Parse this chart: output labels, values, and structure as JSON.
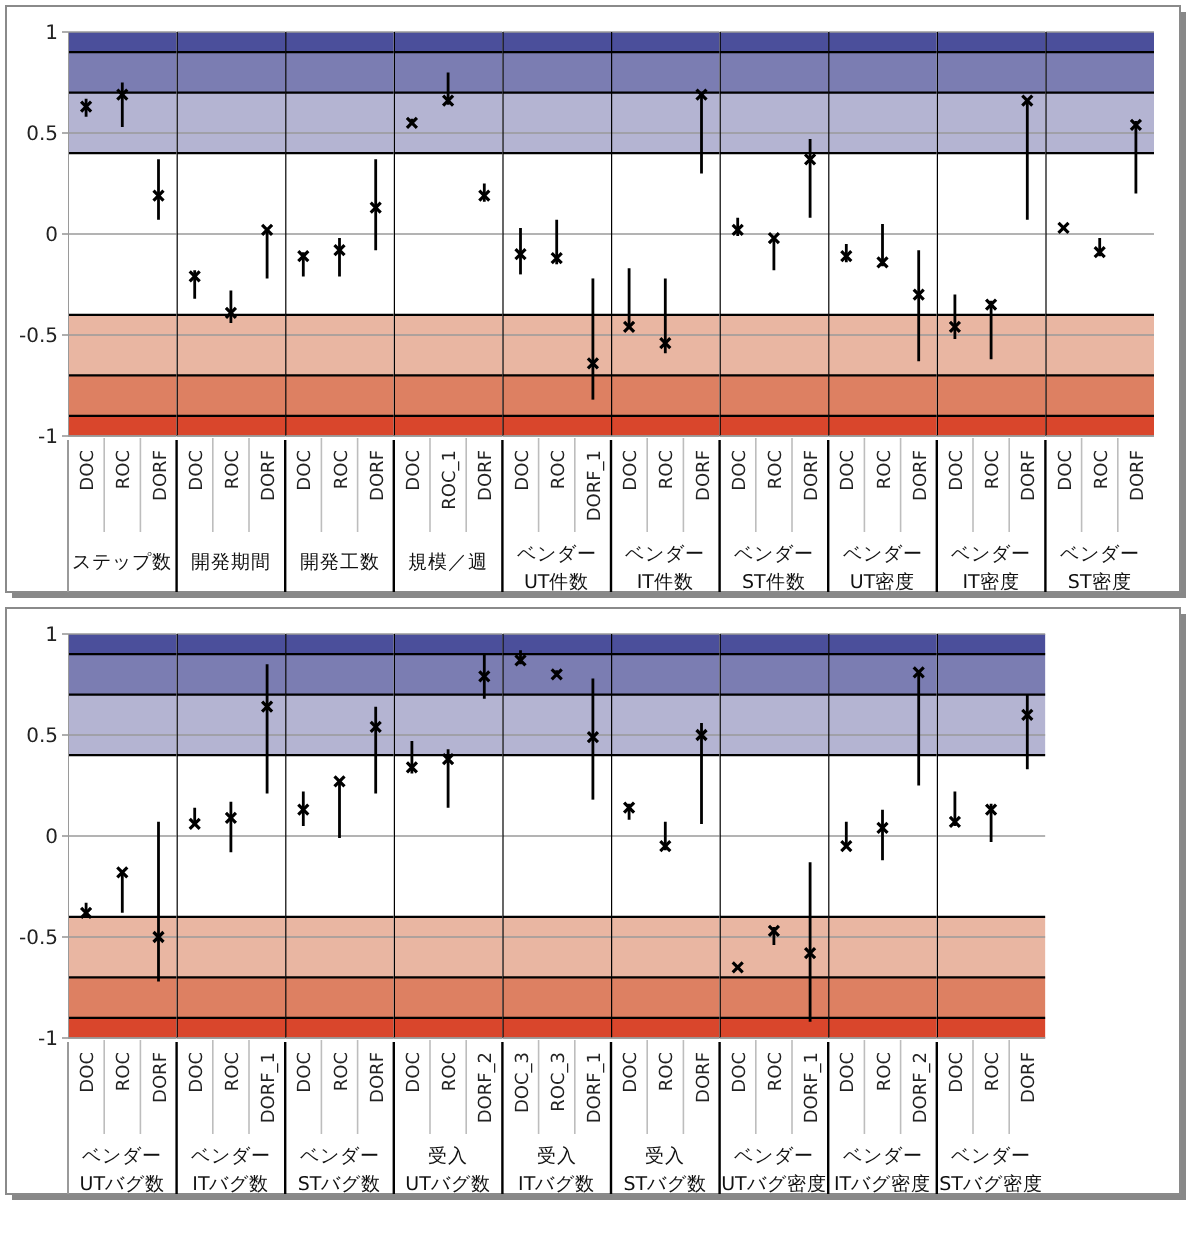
{
  "chart_data": [
    {
      "type": "scatter",
      "xlabel": "ステップ数",
      "categories": [
        "DOC",
        "ROC",
        "DORF"
      ],
      "values": [
        0.63,
        0.69,
        0.19
      ],
      "errors": [
        [
          0.58,
          0.67
        ],
        [
          0.53,
          0.75
        ],
        [
          0.07,
          0.37
        ]
      ],
      "ylim": [
        -1,
        1
      ],
      "yticks": [
        -1,
        -0.5,
        0,
        0.5,
        1
      ],
      "grid": "y",
      "marker": "cross",
      "bands": [
        {
          "axis": "y",
          "from": 0.9,
          "to": 1,
          "color": "#4b4f9b"
        },
        {
          "axis": "y",
          "from": 0.7,
          "to": 0.9,
          "color": "#7b7db2"
        },
        {
          "axis": "y",
          "from": 0.4,
          "to": 0.7,
          "color": "#b4b4d2"
        },
        {
          "axis": "y",
          "from": -0.7,
          "to": -0.4,
          "color": "#e9b6a2"
        },
        {
          "axis": "y",
          "from": -0.9,
          "to": -0.7,
          "color": "#dd8062"
        },
        {
          "axis": "y",
          "from": -1,
          "to": -0.9,
          "color": "#d9462c"
        }
      ],
      "ref_lines": [
        {
          "axis": "y",
          "value": 0.9,
          "color": "#000000"
        },
        {
          "axis": "y",
          "value": 0.7,
          "color": "#000000"
        },
        {
          "axis": "y",
          "value": 0.4,
          "color": "#000000"
        },
        {
          "axis": "y",
          "value": -0.4,
          "color": "#000000"
        },
        {
          "axis": "y",
          "value": -0.7,
          "color": "#000000"
        },
        {
          "axis": "y",
          "value": -0.9,
          "color": "#000000"
        }
      ]
    },
    {
      "type": "scatter",
      "xlabel": "開発期間",
      "categories": [
        "DOC",
        "ROC",
        "DORF"
      ],
      "values": [
        -0.21,
        -0.39,
        0.02
      ],
      "errors": [
        [
          -0.32,
          -0.18
        ],
        [
          -0.44,
          -0.28
        ],
        [
          -0.22,
          0.03
        ]
      ],
      "ylim": [
        -1,
        1
      ],
      "yticks": [
        -1,
        -0.5,
        0,
        0.5,
        1
      ],
      "tick_labels": "x",
      "grid": "y",
      "marker": "cross",
      "bands": [
        {
          "axis": "y",
          "from": 0.9,
          "to": 1,
          "color": "#4b4f9b"
        },
        {
          "axis": "y",
          "from": 0.7,
          "to": 0.9,
          "color": "#7b7db2"
        },
        {
          "axis": "y",
          "from": 0.4,
          "to": 0.7,
          "color": "#b4b4d2"
        },
        {
          "axis": "y",
          "from": -0.7,
          "to": -0.4,
          "color": "#e9b6a2"
        },
        {
          "axis": "y",
          "from": -0.9,
          "to": -0.7,
          "color": "#dd8062"
        },
        {
          "axis": "y",
          "from": -1,
          "to": -0.9,
          "color": "#d9462c"
        }
      ],
      "ref_lines": [
        {
          "axis": "y",
          "value": 0.9,
          "color": "#000000"
        },
        {
          "axis": "y",
          "value": 0.7,
          "color": "#000000"
        },
        {
          "axis": "y",
          "value": 0.4,
          "color": "#000000"
        },
        {
          "axis": "y",
          "value": -0.4,
          "color": "#000000"
        },
        {
          "axis": "y",
          "value": -0.7,
          "color": "#000000"
        },
        {
          "axis": "y",
          "value": -0.9,
          "color": "#000000"
        }
      ]
    },
    {
      "type": "scatter",
      "xlabel": "開発工数",
      "categories": [
        "DOC",
        "ROC",
        "DORF"
      ],
      "values": [
        -0.11,
        -0.08,
        0.13
      ],
      "errors": [
        [
          -0.21,
          -0.09
        ],
        [
          -0.21,
          -0.02
        ],
        [
          -0.08,
          0.37
        ]
      ],
      "ylim": [
        -1,
        1
      ],
      "yticks": [
        -1,
        -0.5,
        0,
        0.5,
        1
      ],
      "tick_labels": "x",
      "grid": "y",
      "marker": "cross",
      "bands": [
        {
          "axis": "y",
          "from": 0.9,
          "to": 1,
          "color": "#4b4f9b"
        },
        {
          "axis": "y",
          "from": 0.7,
          "to": 0.9,
          "color": "#7b7db2"
        },
        {
          "axis": "y",
          "from": 0.4,
          "to": 0.7,
          "color": "#b4b4d2"
        },
        {
          "axis": "y",
          "from": -0.7,
          "to": -0.4,
          "color": "#e9b6a2"
        },
        {
          "axis": "y",
          "from": -0.9,
          "to": -0.7,
          "color": "#dd8062"
        },
        {
          "axis": "y",
          "from": -1,
          "to": -0.9,
          "color": "#d9462c"
        }
      ],
      "ref_lines": [
        {
          "axis": "y",
          "value": 0.9,
          "color": "#000000"
        },
        {
          "axis": "y",
          "value": 0.7,
          "color": "#000000"
        },
        {
          "axis": "y",
          "value": 0.4,
          "color": "#000000"
        },
        {
          "axis": "y",
          "value": -0.4,
          "color": "#000000"
        },
        {
          "axis": "y",
          "value": -0.7,
          "color": "#000000"
        },
        {
          "axis": "y",
          "value": -0.9,
          "color": "#000000"
        }
      ]
    },
    {
      "type": "scatter",
      "xlabel": "規模／週",
      "categories": [
        "DOC",
        "ROC_1",
        "DORF"
      ],
      "values": [
        0.55,
        0.66,
        0.19
      ],
      "errors": [
        [
          0.54,
          0.57
        ],
        [
          0.64,
          0.8
        ],
        [
          0.16,
          0.25
        ]
      ],
      "ylim": [
        -1,
        1
      ],
      "yticks": [
        -1,
        -0.5,
        0,
        0.5,
        1
      ],
      "tick_labels": "x",
      "grid": "y",
      "marker": "cross",
      "bands": [
        {
          "axis": "y",
          "from": 0.9,
          "to": 1,
          "color": "#4b4f9b"
        },
        {
          "axis": "y",
          "from": 0.7,
          "to": 0.9,
          "color": "#7b7db2"
        },
        {
          "axis": "y",
          "from": 0.4,
          "to": 0.7,
          "color": "#b4b4d2"
        },
        {
          "axis": "y",
          "from": -0.7,
          "to": -0.4,
          "color": "#e9b6a2"
        },
        {
          "axis": "y",
          "from": -0.9,
          "to": -0.7,
          "color": "#dd8062"
        },
        {
          "axis": "y",
          "from": -1,
          "to": -0.9,
          "color": "#d9462c"
        }
      ],
      "ref_lines": [
        {
          "axis": "y",
          "value": 0.9,
          "color": "#000000"
        },
        {
          "axis": "y",
          "value": 0.7,
          "color": "#000000"
        },
        {
          "axis": "y",
          "value": 0.4,
          "color": "#000000"
        },
        {
          "axis": "y",
          "value": -0.4,
          "color": "#000000"
        },
        {
          "axis": "y",
          "value": -0.7,
          "color": "#000000"
        },
        {
          "axis": "y",
          "value": -0.9,
          "color": "#000000"
        }
      ]
    },
    {
      "type": "scatter",
      "xlabel": "ベンダー UT件数",
      "categories": [
        "DOC",
        "ROC",
        "DORF_1"
      ],
      "values": [
        -0.1,
        -0.12,
        -0.64
      ],
      "errors": [
        [
          -0.2,
          0.03
        ],
        [
          -0.15,
          0.07
        ],
        [
          -0.82,
          -0.22
        ]
      ],
      "ylim": [
        -1,
        1
      ],
      "yticks": [
        -1,
        -0.5,
        0,
        0.5,
        1
      ],
      "tick_labels": "x",
      "grid": "y",
      "marker": "cross",
      "bands": [
        {
          "axis": "y",
          "from": 0.9,
          "to": 1,
          "color": "#4b4f9b"
        },
        {
          "axis": "y",
          "from": 0.7,
          "to": 0.9,
          "color": "#7b7db2"
        },
        {
          "axis": "y",
          "from": 0.4,
          "to": 0.7,
          "color": "#b4b4d2"
        },
        {
          "axis": "y",
          "from": -0.7,
          "to": -0.4,
          "color": "#e9b6a2"
        },
        {
          "axis": "y",
          "from": -0.9,
          "to": -0.7,
          "color": "#dd8062"
        },
        {
          "axis": "y",
          "from": -1,
          "to": -0.9,
          "color": "#d9462c"
        }
      ],
      "ref_lines": [
        {
          "axis": "y",
          "value": 0.9,
          "color": "#000000"
        },
        {
          "axis": "y",
          "value": 0.7,
          "color": "#000000"
        },
        {
          "axis": "y",
          "value": 0.4,
          "color": "#000000"
        },
        {
          "axis": "y",
          "value": -0.4,
          "color": "#000000"
        },
        {
          "axis": "y",
          "value": -0.7,
          "color": "#000000"
        },
        {
          "axis": "y",
          "value": -0.9,
          "color": "#000000"
        }
      ]
    },
    {
      "type": "scatter",
      "xlabel": "ベンダー IT件数",
      "categories": [
        "DOC",
        "ROC",
        "DORF"
      ],
      "values": [
        -0.46,
        -0.54,
        0.69
      ],
      "errors": [
        [
          -0.46,
          -0.17
        ],
        [
          -0.59,
          -0.22
        ],
        [
          0.3,
          0.69
        ]
      ],
      "ylim": [
        -1,
        1
      ],
      "yticks": [
        -1,
        -0.5,
        0,
        0.5,
        1
      ],
      "tick_labels": "x",
      "grid": "y",
      "marker": "cross",
      "bands": [
        {
          "axis": "y",
          "from": 0.9,
          "to": 1,
          "color": "#4b4f9b"
        },
        {
          "axis": "y",
          "from": 0.7,
          "to": 0.9,
          "color": "#7b7db2"
        },
        {
          "axis": "y",
          "from": 0.4,
          "to": 0.7,
          "color": "#b4b4d2"
        },
        {
          "axis": "y",
          "from": -0.7,
          "to": -0.4,
          "color": "#e9b6a2"
        },
        {
          "axis": "y",
          "from": -0.9,
          "to": -0.7,
          "color": "#dd8062"
        },
        {
          "axis": "y",
          "from": -1,
          "to": -0.9,
          "color": "#d9462c"
        }
      ],
      "ref_lines": [
        {
          "axis": "y",
          "value": 0.9,
          "color": "#000000"
        },
        {
          "axis": "y",
          "value": 0.7,
          "color": "#000000"
        },
        {
          "axis": "y",
          "value": 0.4,
          "color": "#000000"
        },
        {
          "axis": "y",
          "value": -0.4,
          "color": "#000000"
        },
        {
          "axis": "y",
          "value": -0.7,
          "color": "#000000"
        },
        {
          "axis": "y",
          "value": -0.9,
          "color": "#000000"
        }
      ]
    },
    {
      "type": "scatter",
      "xlabel": "ベンダー ST件数",
      "categories": [
        "DOC",
        "ROC",
        "DORF"
      ],
      "values": [
        0.02,
        -0.02,
        0.37
      ],
      "errors": [
        [
          -0.01,
          0.08
        ],
        [
          -0.18,
          -0.01
        ],
        [
          0.08,
          0.47
        ]
      ],
      "ylim": [
        -1,
        1
      ],
      "yticks": [
        -1,
        -0.5,
        0,
        0.5,
        1
      ],
      "tick_labels": "x",
      "grid": "y",
      "marker": "cross",
      "bands": [
        {
          "axis": "y",
          "from": 0.9,
          "to": 1,
          "color": "#4b4f9b"
        },
        {
          "axis": "y",
          "from": 0.7,
          "to": 0.9,
          "color": "#7b7db2"
        },
        {
          "axis": "y",
          "from": 0.4,
          "to": 0.7,
          "color": "#b4b4d2"
        },
        {
          "axis": "y",
          "from": -0.7,
          "to": -0.4,
          "color": "#e9b6a2"
        },
        {
          "axis": "y",
          "from": -0.9,
          "to": -0.7,
          "color": "#dd8062"
        },
        {
          "axis": "y",
          "from": -1,
          "to": -0.9,
          "color": "#d9462c"
        }
      ],
      "ref_lines": [
        {
          "axis": "y",
          "value": 0.9,
          "color": "#000000"
        },
        {
          "axis": "y",
          "value": 0.7,
          "color": "#000000"
        },
        {
          "axis": "y",
          "value": 0.4,
          "color": "#000000"
        },
        {
          "axis": "y",
          "value": -0.4,
          "color": "#000000"
        },
        {
          "axis": "y",
          "value": -0.7,
          "color": "#000000"
        },
        {
          "axis": "y",
          "value": -0.9,
          "color": "#000000"
        }
      ]
    },
    {
      "type": "scatter",
      "xlabel": "ベンダー UT密度",
      "categories": [
        "DOC",
        "ROC",
        "DORF"
      ],
      "values": [
        -0.11,
        -0.14,
        -0.3
      ],
      "errors": [
        [
          -0.14,
          -0.05
        ],
        [
          -0.16,
          0.05
        ],
        [
          -0.63,
          -0.08
        ]
      ],
      "ylim": [
        -1,
        1
      ],
      "yticks": [
        -1,
        -0.5,
        0,
        0.5,
        1
      ],
      "tick_labels": "x",
      "grid": "y",
      "marker": "cross",
      "bands": [
        {
          "axis": "y",
          "from": 0.9,
          "to": 1,
          "color": "#4b4f9b"
        },
        {
          "axis": "y",
          "from": 0.7,
          "to": 0.9,
          "color": "#7b7db2"
        },
        {
          "axis": "y",
          "from": 0.4,
          "to": 0.7,
          "color": "#b4b4d2"
        },
        {
          "axis": "y",
          "from": -0.7,
          "to": -0.4,
          "color": "#e9b6a2"
        },
        {
          "axis": "y",
          "from": -0.9,
          "to": -0.7,
          "color": "#dd8062"
        },
        {
          "axis": "y",
          "from": -1,
          "to": -0.9,
          "color": "#d9462c"
        }
      ],
      "ref_lines": [
        {
          "axis": "y",
          "value": 0.9,
          "color": "#000000"
        },
        {
          "axis": "y",
          "value": 0.7,
          "color": "#000000"
        },
        {
          "axis": "y",
          "value": 0.4,
          "color": "#000000"
        },
        {
          "axis": "y",
          "value": -0.4,
          "color": "#000000"
        },
        {
          "axis": "y",
          "value": -0.7,
          "color": "#000000"
        },
        {
          "axis": "y",
          "value": -0.9,
          "color": "#000000"
        }
      ]
    },
    {
      "type": "scatter",
      "xlabel": "ベンダー IT密度",
      "categories": [
        "DOC",
        "ROC",
        "DORF"
      ],
      "values": [
        -0.46,
        -0.35,
        0.66
      ],
      "errors": [
        [
          -0.52,
          -0.3
        ],
        [
          -0.62,
          -0.33
        ],
        [
          0.07,
          0.66
        ]
      ],
      "ylim": [
        -1,
        1
      ],
      "yticks": [
        -1,
        -0.5,
        0,
        0.5,
        1
      ],
      "tick_labels": "x",
      "grid": "y",
      "marker": "cross",
      "bands": [
        {
          "axis": "y",
          "from": 0.9,
          "to": 1,
          "color": "#4b4f9b"
        },
        {
          "axis": "y",
          "from": 0.7,
          "to": 0.9,
          "color": "#7b7db2"
        },
        {
          "axis": "y",
          "from": 0.4,
          "to": 0.7,
          "color": "#b4b4d2"
        },
        {
          "axis": "y",
          "from": -0.7,
          "to": -0.4,
          "color": "#e9b6a2"
        },
        {
          "axis": "y",
          "from": -0.9,
          "to": -0.7,
          "color": "#dd8062"
        },
        {
          "axis": "y",
          "from": -1,
          "to": -0.9,
          "color": "#d9462c"
        }
      ],
      "ref_lines": [
        {
          "axis": "y",
          "value": 0.9,
          "color": "#000000"
        },
        {
          "axis": "y",
          "value": 0.7,
          "color": "#000000"
        },
        {
          "axis": "y",
          "value": 0.4,
          "color": "#000000"
        },
        {
          "axis": "y",
          "value": -0.4,
          "color": "#000000"
        },
        {
          "axis": "y",
          "value": -0.7,
          "color": "#000000"
        },
        {
          "axis": "y",
          "value": -0.9,
          "color": "#000000"
        }
      ]
    },
    {
      "type": "scatter",
      "xlabel": "ベンダー ST密度",
      "categories": [
        "DOC",
        "ROC",
        "DORF"
      ],
      "values": [
        0.03,
        -0.09,
        0.54
      ],
      "errors": [
        null,
        [
          -0.11,
          -0.02
        ],
        [
          0.2,
          0.56
        ]
      ],
      "ylim": [
        -1,
        1
      ],
      "yticks": [
        -1,
        -0.5,
        0,
        0.5,
        1
      ],
      "tick_labels": "x",
      "grid": "y",
      "marker": "cross",
      "bands": [
        {
          "axis": "y",
          "from": 0.9,
          "to": 1,
          "color": "#4b4f9b"
        },
        {
          "axis": "y",
          "from": 0.7,
          "to": 0.9,
          "color": "#7b7db2"
        },
        {
          "axis": "y",
          "from": 0.4,
          "to": 0.7,
          "color": "#b4b4d2"
        },
        {
          "axis": "y",
          "from": -0.7,
          "to": -0.4,
          "color": "#e9b6a2"
        },
        {
          "axis": "y",
          "from": -0.9,
          "to": -0.7,
          "color": "#dd8062"
        },
        {
          "axis": "y",
          "from": -1,
          "to": -0.9,
          "color": "#d9462c"
        }
      ],
      "ref_lines": [
        {
          "axis": "y",
          "value": 0.9,
          "color": "#000000"
        },
        {
          "axis": "y",
          "value": 0.7,
          "color": "#000000"
        },
        {
          "axis": "y",
          "value": 0.4,
          "color": "#000000"
        },
        {
          "axis": "y",
          "value": -0.4,
          "color": "#000000"
        },
        {
          "axis": "y",
          "value": -0.7,
          "color": "#000000"
        },
        {
          "axis": "y",
          "value": -0.9,
          "color": "#000000"
        }
      ]
    },
    {
      "type": "scatter",
      "xlabel": "ベンダー UTバグ数",
      "categories": [
        "DOC",
        "ROC",
        "DORF"
      ],
      "values": [
        -0.38,
        -0.18,
        -0.5
      ],
      "errors": [
        [
          -0.4,
          -0.33
        ],
        [
          -0.38,
          -0.18
        ],
        [
          -0.72,
          0.07
        ]
      ],
      "ylim": [
        -1,
        1
      ],
      "yticks": [
        -1,
        -0.5,
        0,
        0.5,
        1
      ],
      "grid": "y",
      "marker": "cross",
      "bands": [
        {
          "axis": "y",
          "from": 0.9,
          "to": 1,
          "color": "#4b4f9b"
        },
        {
          "axis": "y",
          "from": 0.7,
          "to": 0.9,
          "color": "#7b7db2"
        },
        {
          "axis": "y",
          "from": 0.4,
          "to": 0.7,
          "color": "#b4b4d2"
        },
        {
          "axis": "y",
          "from": -0.7,
          "to": -0.4,
          "color": "#e9b6a2"
        },
        {
          "axis": "y",
          "from": -0.9,
          "to": -0.7,
          "color": "#dd8062"
        },
        {
          "axis": "y",
          "from": -1,
          "to": -0.9,
          "color": "#d9462c"
        }
      ],
      "ref_lines": [
        {
          "axis": "y",
          "value": 0.9,
          "color": "#000000"
        },
        {
          "axis": "y",
          "value": 0.7,
          "color": "#000000"
        },
        {
          "axis": "y",
          "value": 0.4,
          "color": "#000000"
        },
        {
          "axis": "y",
          "value": -0.4,
          "color": "#000000"
        },
        {
          "axis": "y",
          "value": -0.7,
          "color": "#000000"
        },
        {
          "axis": "y",
          "value": -0.9,
          "color": "#000000"
        }
      ]
    },
    {
      "type": "scatter",
      "xlabel": "ベンダー ITバグ数",
      "categories": [
        "DOC",
        "ROC",
        "DORF_1"
      ],
      "values": [
        0.06,
        0.09,
        0.64
      ],
      "errors": [
        [
          0.05,
          0.14
        ],
        [
          -0.08,
          0.17
        ],
        [
          0.21,
          0.85
        ]
      ],
      "ylim": [
        -1,
        1
      ],
      "yticks": [
        -1,
        -0.5,
        0,
        0.5,
        1
      ],
      "tick_labels": "x",
      "grid": "y",
      "marker": "cross",
      "bands": [
        {
          "axis": "y",
          "from": 0.9,
          "to": 1,
          "color": "#4b4f9b"
        },
        {
          "axis": "y",
          "from": 0.7,
          "to": 0.9,
          "color": "#7b7db2"
        },
        {
          "axis": "y",
          "from": 0.4,
          "to": 0.7,
          "color": "#b4b4d2"
        },
        {
          "axis": "y",
          "from": -0.7,
          "to": -0.4,
          "color": "#e9b6a2"
        },
        {
          "axis": "y",
          "from": -0.9,
          "to": -0.7,
          "color": "#dd8062"
        },
        {
          "axis": "y",
          "from": -1,
          "to": -0.9,
          "color": "#d9462c"
        }
      ],
      "ref_lines": [
        {
          "axis": "y",
          "value": 0.9,
          "color": "#000000"
        },
        {
          "axis": "y",
          "value": 0.7,
          "color": "#000000"
        },
        {
          "axis": "y",
          "value": 0.4,
          "color": "#000000"
        },
        {
          "axis": "y",
          "value": -0.4,
          "color": "#000000"
        },
        {
          "axis": "y",
          "value": -0.7,
          "color": "#000000"
        },
        {
          "axis": "y",
          "value": -0.9,
          "color": "#000000"
        }
      ]
    },
    {
      "type": "scatter",
      "xlabel": "ベンダー STバグ数",
      "categories": [
        "DOC",
        "ROC",
        "DORF"
      ],
      "values": [
        0.13,
        0.27,
        0.54
      ],
      "errors": [
        [
          0.05,
          0.22
        ],
        [
          -0.01,
          0.27
        ],
        [
          0.21,
          0.64
        ]
      ],
      "ylim": [
        -1,
        1
      ],
      "yticks": [
        -1,
        -0.5,
        0,
        0.5,
        1
      ],
      "tick_labels": "x",
      "grid": "y",
      "marker": "cross",
      "bands": [
        {
          "axis": "y",
          "from": 0.9,
          "to": 1,
          "color": "#4b4f9b"
        },
        {
          "axis": "y",
          "from": 0.7,
          "to": 0.9,
          "color": "#7b7db2"
        },
        {
          "axis": "y",
          "from": 0.4,
          "to": 0.7,
          "color": "#b4b4d2"
        },
        {
          "axis": "y",
          "from": -0.7,
          "to": -0.4,
          "color": "#e9b6a2"
        },
        {
          "axis": "y",
          "from": -0.9,
          "to": -0.7,
          "color": "#dd8062"
        },
        {
          "axis": "y",
          "from": -1,
          "to": -0.9,
          "color": "#d9462c"
        }
      ],
      "ref_lines": [
        {
          "axis": "y",
          "value": 0.9,
          "color": "#000000"
        },
        {
          "axis": "y",
          "value": 0.7,
          "color": "#000000"
        },
        {
          "axis": "y",
          "value": 0.4,
          "color": "#000000"
        },
        {
          "axis": "y",
          "value": -0.4,
          "color": "#000000"
        },
        {
          "axis": "y",
          "value": -0.7,
          "color": "#000000"
        },
        {
          "axis": "y",
          "value": -0.9,
          "color": "#000000"
        }
      ]
    },
    {
      "type": "scatter",
      "xlabel": "受入 UTバグ数",
      "categories": [
        "DOC",
        "ROC",
        "DORF_2"
      ],
      "values": [
        0.34,
        0.38,
        0.79
      ],
      "errors": [
        [
          0.31,
          0.47
        ],
        [
          0.14,
          0.43
        ],
        [
          0.68,
          0.9
        ]
      ],
      "ylim": [
        -1,
        1
      ],
      "yticks": [
        -1,
        -0.5,
        0,
        0.5,
        1
      ],
      "tick_labels": "x",
      "grid": "y",
      "marker": "cross",
      "bands": [
        {
          "axis": "y",
          "from": 0.9,
          "to": 1,
          "color": "#4b4f9b"
        },
        {
          "axis": "y",
          "from": 0.7,
          "to": 0.9,
          "color": "#7b7db2"
        },
        {
          "axis": "y",
          "from": 0.4,
          "to": 0.7,
          "color": "#b4b4d2"
        },
        {
          "axis": "y",
          "from": -0.7,
          "to": -0.4,
          "color": "#e9b6a2"
        },
        {
          "axis": "y",
          "from": -0.9,
          "to": -0.7,
          "color": "#dd8062"
        },
        {
          "axis": "y",
          "from": -1,
          "to": -0.9,
          "color": "#d9462c"
        }
      ],
      "ref_lines": [
        {
          "axis": "y",
          "value": 0.9,
          "color": "#000000"
        },
        {
          "axis": "y",
          "value": 0.7,
          "color": "#000000"
        },
        {
          "axis": "y",
          "value": 0.4,
          "color": "#000000"
        },
        {
          "axis": "y",
          "value": -0.4,
          "color": "#000000"
        },
        {
          "axis": "y",
          "value": -0.7,
          "color": "#000000"
        },
        {
          "axis": "y",
          "value": -0.9,
          "color": "#000000"
        }
      ]
    },
    {
      "type": "scatter",
      "xlabel": "受入 ITバグ数",
      "categories": [
        "DOC_3",
        "ROC_3",
        "DORF_1"
      ],
      "values": [
        0.87,
        0.8,
        0.49
      ],
      "errors": [
        [
          0.85,
          0.92
        ],
        [
          0.79,
          0.82
        ],
        [
          0.18,
          0.78
        ]
      ],
      "ylim": [
        -1,
        1
      ],
      "yticks": [
        -1,
        -0.5,
        0,
        0.5,
        1
      ],
      "tick_labels": "x",
      "grid": "y",
      "marker": "cross",
      "bands": [
        {
          "axis": "y",
          "from": 0.9,
          "to": 1,
          "color": "#4b4f9b"
        },
        {
          "axis": "y",
          "from": 0.7,
          "to": 0.9,
          "color": "#7b7db2"
        },
        {
          "axis": "y",
          "from": 0.4,
          "to": 0.7,
          "color": "#b4b4d2"
        },
        {
          "axis": "y",
          "from": -0.7,
          "to": -0.4,
          "color": "#e9b6a2"
        },
        {
          "axis": "y",
          "from": -0.9,
          "to": -0.7,
          "color": "#dd8062"
        },
        {
          "axis": "y",
          "from": -1,
          "to": -0.9,
          "color": "#d9462c"
        }
      ],
      "ref_lines": [
        {
          "axis": "y",
          "value": 0.9,
          "color": "#000000"
        },
        {
          "axis": "y",
          "value": 0.7,
          "color": "#000000"
        },
        {
          "axis": "y",
          "value": 0.4,
          "color": "#000000"
        },
        {
          "axis": "y",
          "value": -0.4,
          "color": "#000000"
        },
        {
          "axis": "y",
          "value": -0.7,
          "color": "#000000"
        },
        {
          "axis": "y",
          "value": -0.9,
          "color": "#000000"
        }
      ]
    },
    {
      "type": "scatter",
      "xlabel": "受入 STバグ数",
      "categories": [
        "DOC",
        "ROC",
        "DORF"
      ],
      "values": [
        0.14,
        -0.05,
        0.5
      ],
      "errors": [
        [
          0.08,
          0.16
        ],
        [
          -0.07,
          0.07
        ],
        [
          0.06,
          0.56
        ]
      ],
      "ylim": [
        -1,
        1
      ],
      "yticks": [
        -1,
        -0.5,
        0,
        0.5,
        1
      ],
      "tick_labels": "x",
      "grid": "y",
      "marker": "cross",
      "bands": [
        {
          "axis": "y",
          "from": 0.9,
          "to": 1,
          "color": "#4b4f9b"
        },
        {
          "axis": "y",
          "from": 0.7,
          "to": 0.9,
          "color": "#7b7db2"
        },
        {
          "axis": "y",
          "from": 0.4,
          "to": 0.7,
          "color": "#b4b4d2"
        },
        {
          "axis": "y",
          "from": -0.7,
          "to": -0.4,
          "color": "#e9b6a2"
        },
        {
          "axis": "y",
          "from": -0.9,
          "to": -0.7,
          "color": "#dd8062"
        },
        {
          "axis": "y",
          "from": -1,
          "to": -0.9,
          "color": "#d9462c"
        }
      ],
      "ref_lines": [
        {
          "axis": "y",
          "value": 0.9,
          "color": "#000000"
        },
        {
          "axis": "y",
          "value": 0.7,
          "color": "#000000"
        },
        {
          "axis": "y",
          "value": 0.4,
          "color": "#000000"
        },
        {
          "axis": "y",
          "value": -0.4,
          "color": "#000000"
        },
        {
          "axis": "y",
          "value": -0.7,
          "color": "#000000"
        },
        {
          "axis": "y",
          "value": -0.9,
          "color": "#000000"
        }
      ]
    },
    {
      "type": "scatter",
      "xlabel": "ベンダー UTバグ密度",
      "categories": [
        "DOC",
        "ROC",
        "DORF_1"
      ],
      "values": [
        -0.65,
        -0.47,
        -0.58
      ],
      "errors": [
        null,
        [
          -0.54,
          -0.45
        ],
        [
          -0.92,
          -0.13
        ]
      ],
      "ylim": [
        -1,
        1
      ],
      "yticks": [
        -1,
        -0.5,
        0,
        0.5,
        1
      ],
      "tick_labels": "x",
      "grid": "y",
      "marker": "cross",
      "bands": [
        {
          "axis": "y",
          "from": 0.9,
          "to": 1,
          "color": "#4b4f9b"
        },
        {
          "axis": "y",
          "from": 0.7,
          "to": 0.9,
          "color": "#7b7db2"
        },
        {
          "axis": "y",
          "from": 0.4,
          "to": 0.7,
          "color": "#b4b4d2"
        },
        {
          "axis": "y",
          "from": -0.7,
          "to": -0.4,
          "color": "#e9b6a2"
        },
        {
          "axis": "y",
          "from": -0.9,
          "to": -0.7,
          "color": "#dd8062"
        },
        {
          "axis": "y",
          "from": -1,
          "to": -0.9,
          "color": "#d9462c"
        }
      ],
      "ref_lines": [
        {
          "axis": "y",
          "value": 0.9,
          "color": "#000000"
        },
        {
          "axis": "y",
          "value": 0.7,
          "color": "#000000"
        },
        {
          "axis": "y",
          "value": 0.4,
          "color": "#000000"
        },
        {
          "axis": "y",
          "value": -0.4,
          "color": "#000000"
        },
        {
          "axis": "y",
          "value": -0.7,
          "color": "#000000"
        },
        {
          "axis": "y",
          "value": -0.9,
          "color": "#000000"
        }
      ]
    },
    {
      "type": "scatter",
      "xlabel": "ベンダー ITバグ密度",
      "categories": [
        "DOC",
        "ROC",
        "DORF_2"
      ],
      "values": [
        -0.05,
        0.04,
        0.81
      ],
      "errors": [
        [
          -0.06,
          0.07
        ],
        [
          -0.12,
          0.13
        ],
        [
          0.25,
          0.81
        ]
      ],
      "ylim": [
        -1,
        1
      ],
      "yticks": [
        -1,
        -0.5,
        0,
        0.5,
        1
      ],
      "tick_labels": "x",
      "grid": "y",
      "marker": "cross",
      "bands": [
        {
          "axis": "y",
          "from": 0.9,
          "to": 1,
          "color": "#4b4f9b"
        },
        {
          "axis": "y",
          "from": 0.7,
          "to": 0.9,
          "color": "#7b7db2"
        },
        {
          "axis": "y",
          "from": 0.4,
          "to": 0.7,
          "color": "#b4b4d2"
        },
        {
          "axis": "y",
          "from": -0.7,
          "to": -0.4,
          "color": "#e9b6a2"
        },
        {
          "axis": "y",
          "from": -0.9,
          "to": -0.7,
          "color": "#dd8062"
        },
        {
          "axis": "y",
          "from": -1,
          "to": -0.9,
          "color": "#d9462c"
        }
      ],
      "ref_lines": [
        {
          "axis": "y",
          "value": 0.9,
          "color": "#000000"
        },
        {
          "axis": "y",
          "value": 0.7,
          "color": "#000000"
        },
        {
          "axis": "y",
          "value": 0.4,
          "color": "#000000"
        },
        {
          "axis": "y",
          "value": -0.4,
          "color": "#000000"
        },
        {
          "axis": "y",
          "value": -0.7,
          "color": "#000000"
        },
        {
          "axis": "y",
          "value": -0.9,
          "color": "#000000"
        }
      ]
    },
    {
      "type": "scatter",
      "xlabel": "ベンダー STバグ密度",
      "categories": [
        "DOC",
        "ROC",
        "DORF"
      ],
      "values": [
        0.07,
        0.13,
        0.6
      ],
      "errors": [
        [
          0.05,
          0.22
        ],
        [
          -0.03,
          0.16
        ],
        [
          0.33,
          0.7
        ]
      ],
      "ylim": [
        -1,
        1
      ],
      "yticks": [
        -1,
        -0.5,
        0,
        0.5,
        1
      ],
      "tick_labels": "x",
      "grid": "y",
      "marker": "cross",
      "bands": [
        {
          "axis": "y",
          "from": 0.9,
          "to": 1,
          "color": "#4b4f9b"
        },
        {
          "axis": "y",
          "from": 0.7,
          "to": 0.9,
          "color": "#7b7db2"
        },
        {
          "axis": "y",
          "from": 0.4,
          "to": 0.7,
          "color": "#b4b4d2"
        },
        {
          "axis": "y",
          "from": -0.7,
          "to": -0.4,
          "color": "#e9b6a2"
        },
        {
          "axis": "y",
          "from": -0.9,
          "to": -0.7,
          "color": "#dd8062"
        },
        {
          "axis": "y",
          "from": -1,
          "to": -0.9,
          "color": "#d9462c"
        }
      ],
      "ref_lines": [
        {
          "axis": "y",
          "value": 0.9,
          "color": "#000000"
        },
        {
          "axis": "y",
          "value": 0.7,
          "color": "#000000"
        },
        {
          "axis": "y",
          "value": 0.4,
          "color": "#000000"
        },
        {
          "axis": "y",
          "value": -0.4,
          "color": "#000000"
        },
        {
          "axis": "y",
          "value": -0.7,
          "color": "#000000"
        },
        {
          "axis": "y",
          "value": -0.9,
          "color": "#000000"
        }
      ]
    }
  ]
}
